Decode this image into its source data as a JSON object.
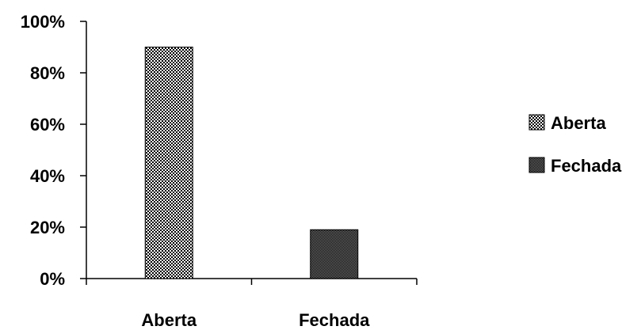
{
  "chart_data": {
    "type": "bar",
    "title": "",
    "xlabel": "",
    "ylabel": "",
    "categories": [
      "Aberta",
      "Fechada"
    ],
    "values": [
      90,
      19
    ],
    "value_unit": "%",
    "ylim": [
      0,
      100
    ],
    "yticks": [
      0,
      20,
      40,
      60,
      80,
      100
    ],
    "ytick_labels": [
      "0%",
      "20%",
      "40%",
      "60%",
      "80%",
      "100%"
    ],
    "grid": false,
    "legend_position": "right",
    "legend": [
      {
        "label": "Aberta",
        "pattern": "checker-light"
      },
      {
        "label": "Fechada",
        "pattern": "checker-dark"
      }
    ],
    "colors": {
      "axis": "#000000",
      "pattern_light_fg": "#000000",
      "pattern_light_bg": "#ffffff",
      "pattern_dark_fg": "#000000",
      "pattern_dark_bg": "#7a7a7a"
    }
  }
}
